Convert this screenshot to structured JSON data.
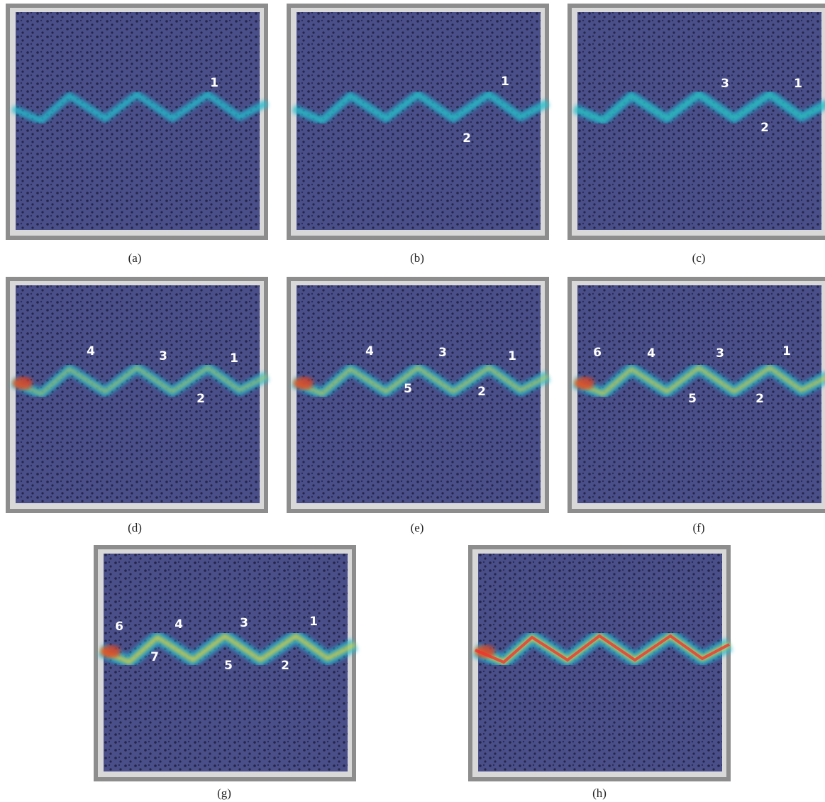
{
  "panels": [
    {
      "caption": "(a)",
      "labels": [
        "1"
      ]
    },
    {
      "caption": "(b)",
      "labels": [
        "1",
        "2"
      ]
    },
    {
      "caption": "(c)",
      "labels": [
        "3",
        "1",
        "2"
      ]
    },
    {
      "caption": "(d)",
      "labels": [
        "4",
        "3",
        "1",
        "2"
      ]
    },
    {
      "caption": "(e)",
      "labels": [
        "4",
        "3",
        "1",
        "5",
        "2"
      ]
    },
    {
      "caption": "(f)",
      "labels": [
        "6",
        "4",
        "3",
        "1",
        "5",
        "2"
      ]
    },
    {
      "caption": "(g)",
      "labels": [
        "6",
        "4",
        "3",
        "1",
        "7",
        "5",
        "2"
      ]
    },
    {
      "caption": "(h)",
      "labels": []
    }
  ]
}
